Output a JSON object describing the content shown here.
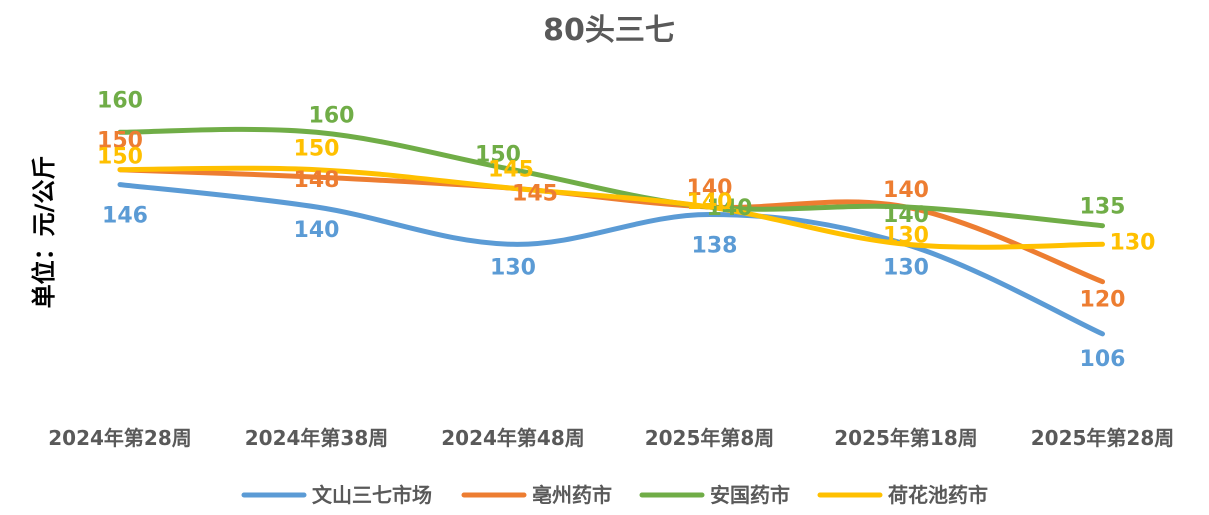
{
  "chart_data": {
    "type": "line",
    "title": "80头三七",
    "ylabel": "单位：元/公斤",
    "xlabel": "",
    "categories": [
      "2024年第28周",
      "2024年第38周",
      "2024年第48周",
      "2025年第8周",
      "2025年第18周",
      "2025年第28周"
    ],
    "ylim": [
      95,
      170
    ],
    "grid": false,
    "smooth": true,
    "legend_position": "bottom",
    "series": [
      {
        "name": "文山三七市场",
        "color": "#5B9BD5",
        "values": [
          146,
          140,
          130,
          138,
          130,
          106
        ]
      },
      {
        "name": "亳州药市",
        "color": "#ED7D31",
        "values": [
          150,
          148,
          145,
          140,
          140,
          120
        ]
      },
      {
        "name": "安国药市",
        "color": "#70AD47",
        "values": [
          160,
          160,
          150,
          140,
          140,
          135
        ]
      },
      {
        "name": "荷花池药市",
        "color": "#FFC000",
        "values": [
          150,
          150,
          145,
          140,
          130,
          130
        ]
      }
    ]
  }
}
